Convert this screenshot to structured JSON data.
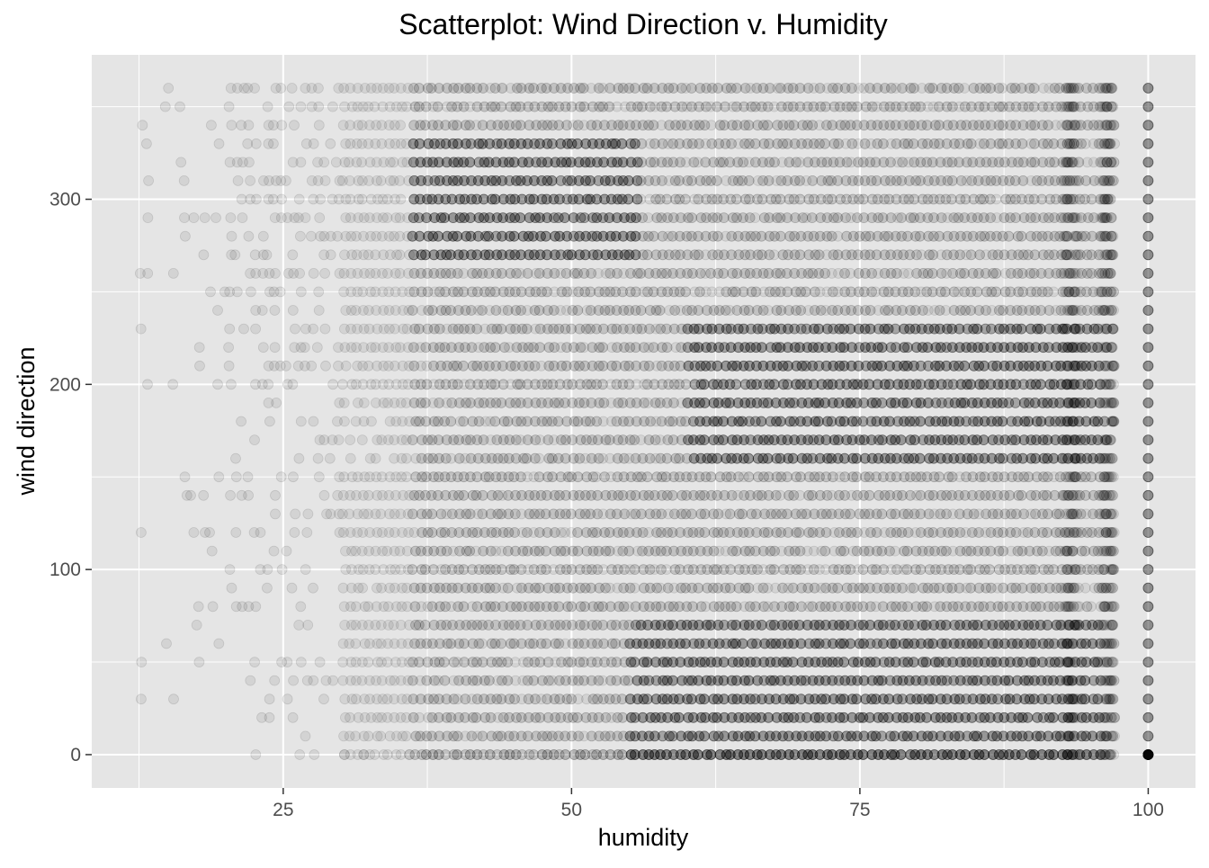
{
  "chart_data": {
    "type": "scatter",
    "title": "Scatterplot: Wind Direction v. Humidity",
    "xlabel": "humidity",
    "ylabel": "wind direction",
    "xlim": [
      8.4,
      104.1
    ],
    "ylim": [
      -18,
      378
    ],
    "x_ticks": [
      25,
      50,
      75,
      100
    ],
    "y_ticks": [
      0,
      100,
      200,
      300
    ],
    "x_tick_labels": [
      "25",
      "50",
      "75",
      "100"
    ],
    "y_tick_labels": [
      "0",
      "100",
      "200",
      "300"
    ],
    "grid": true,
    "point_color": "#000000",
    "point_alpha": 0.08,
    "panel_background": "#e5e5e5",
    "grid_color": "#ffffff",
    "y_values_discrete_step": 10,
    "y_range": [
      0,
      360
    ],
    "x_range": [
      12.7,
      100
    ],
    "distribution": {
      "dense_x_ranges": [
        [
          30,
          97
        ],
        [
          100,
          100
        ]
      ],
      "dense_columns_x": [
        93.3,
        96.5,
        100
      ],
      "high_density_bands": [
        {
          "x_range": [
            36,
            56
          ],
          "y_range": [
            270,
            330
          ]
        },
        {
          "x_range": [
            60,
            96
          ],
          "y_range": [
            160,
            230
          ]
        },
        {
          "x_range": [
            55,
            96
          ],
          "y_range": [
            0,
            70
          ]
        }
      ]
    }
  },
  "colors": {
    "panel": "#e5e5e5",
    "grid": "#ffffff",
    "axis_text": "#4d4d4d",
    "title": "#000000",
    "point": "#000000"
  }
}
